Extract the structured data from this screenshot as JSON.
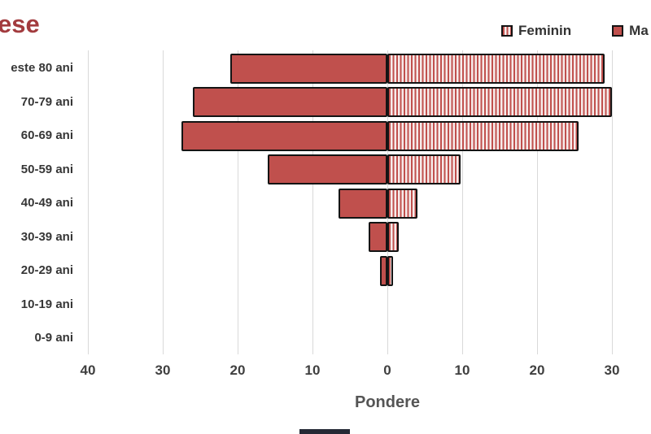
{
  "header": {
    "title_fragment": "ese"
  },
  "legend": {
    "items": [
      {
        "key": "feminin",
        "label": "Feminin",
        "style": "striped"
      },
      {
        "key": "masculin",
        "label": "Ma",
        "style": "solid"
      }
    ]
  },
  "colors": {
    "bar_red": "#C0504D",
    "bar_border": "#141414",
    "title_red": "#A23B3E",
    "axis_text": "#404040",
    "gridline": "#D9D9D9",
    "stripe_background": "#F6EBEA"
  },
  "chart_data": {
    "type": "bar",
    "subtype": "population_pyramid_horizontal",
    "title_visible": "ese",
    "xlabel": "Pondere",
    "grid": "vertical",
    "legend_position": "top-right",
    "categories": [
      "este 80 ani",
      "70-79 ani",
      "60-69 ani",
      "50-59 ani",
      "40-49 ani",
      "30-39 ani",
      "20-29 ani",
      "10-19 ani",
      "0-9 ani"
    ],
    "series": [
      {
        "name": "Ma",
        "key": "masculin",
        "side": "left",
        "fill": "solid",
        "values": [
          21,
          26,
          27.5,
          16,
          6.5,
          2.5,
          1,
          0,
          0
        ]
      },
      {
        "name": "Feminin",
        "key": "feminin",
        "side": "right",
        "fill": "striped",
        "values": [
          29,
          30,
          25.5,
          9.8,
          4,
          1.5,
          0.8,
          0,
          0
        ]
      }
    ],
    "x_ticks": [
      {
        "label": "40",
        "pos": -40
      },
      {
        "label": "30",
        "pos": -30
      },
      {
        "label": "20",
        "pos": -20
      },
      {
        "label": "10",
        "pos": -10
      },
      {
        "label": "0",
        "pos": 0
      },
      {
        "label": "10",
        "pos": 10
      },
      {
        "label": "20",
        "pos": 20
      },
      {
        "label": "30",
        "pos": 30
      }
    ],
    "x_axis_note": "mirrored absolute values, left side = Ma(sculin), right side = Feminin"
  }
}
